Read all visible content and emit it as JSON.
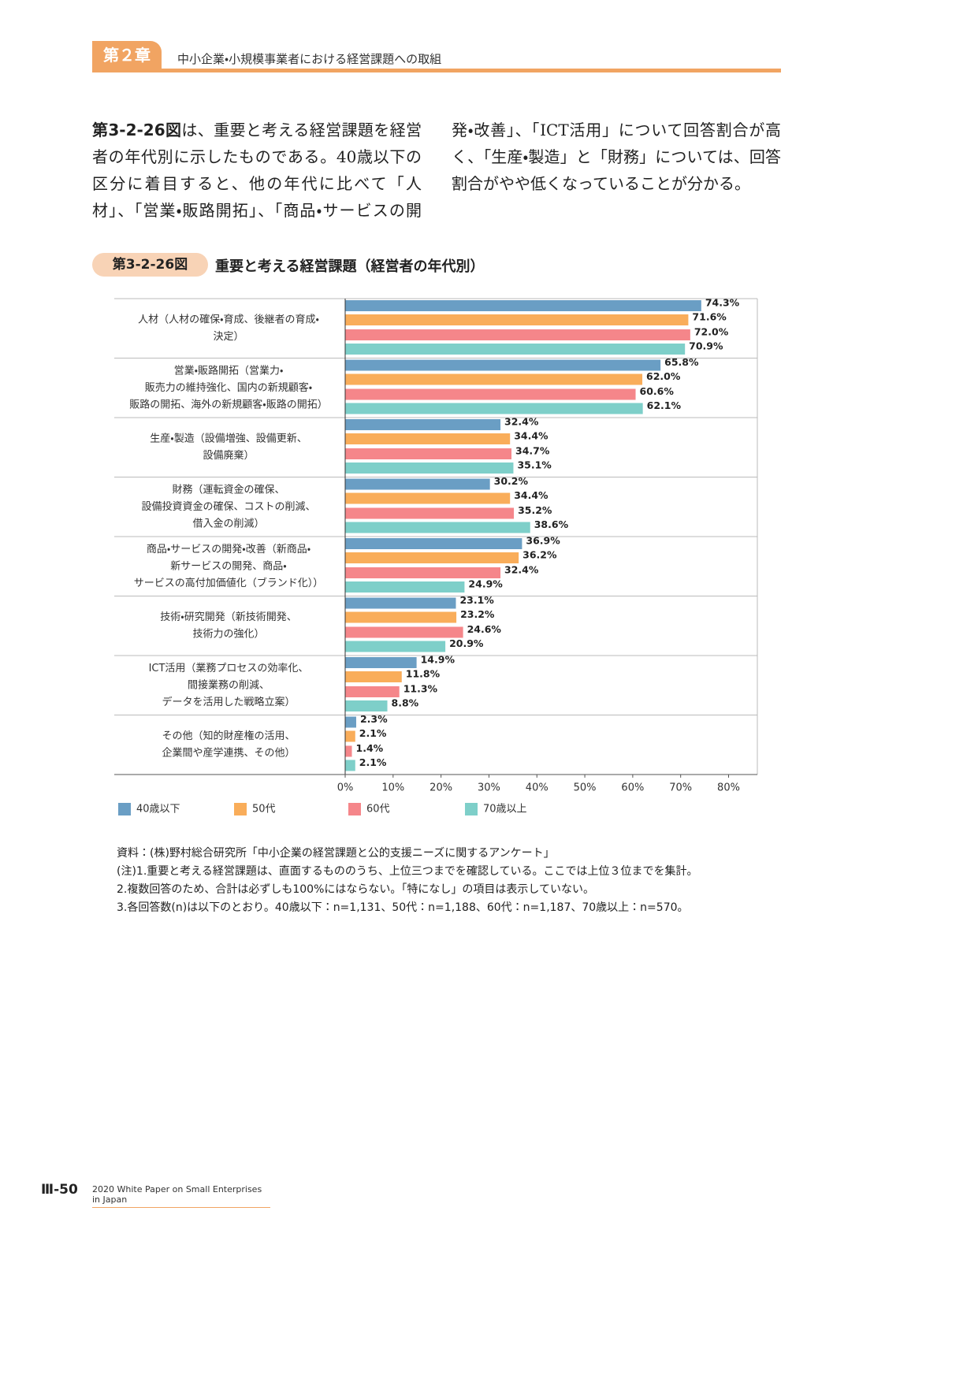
{
  "header": {
    "chapter": "第２章",
    "title": "中小企業・小規模事業者における経営課題への取組"
  },
  "body": {
    "lead": "第3-2-26図",
    "text": "は、重要と考える経営課題を経営者の年代別に示したものである。40歳以下の区分に着目すると、他の年代に比べて「人材」、「営業・販路開拓」、「商品・サービスの開発・改善」、「ICT活用」について回答割合が高く、「生産・製造」と「財務」については、回答割合がやや低くなっていることが分かる。"
  },
  "figure": {
    "number": "第3-2-26図",
    "title": "重要と考える経営課題（経営者の年代別）"
  },
  "chart_data": {
    "type": "bar",
    "orientation": "horizontal",
    "categories": [
      [
        "人材（人材の確保・育成、後継者の育成・",
        "決定）"
      ],
      [
        "営業・販路開拓（営業力・",
        "販売力の維持強化、国内の新規顧客・",
        "販路の開拓、海外の新規顧客・販路の開拓）"
      ],
      [
        "生産・製造（設備増強、設備更新、",
        "設備廃棄）"
      ],
      [
        "財務（運転資金の確保、",
        "設備投資資金の確保、コストの削減、",
        "借入金の削減）"
      ],
      [
        "商品・サービスの開発・改善（新商品・",
        "新サービスの開発、商品・",
        "サービスの高付加価値化（ブランド化））"
      ],
      [
        "技術・研究開発（新技術開発、",
        "技術力の強化）"
      ],
      [
        "ICT活用（業務プロセスの効率化、",
        "間接業務の削減、",
        "データを活用した戦略立案）"
      ],
      [
        "その他（知的財産権の活用、",
        "企業間や産学連携、その他）"
      ]
    ],
    "series": [
      {
        "name": "40歳以下",
        "color": "#6a9ec4",
        "values": [
          74.3,
          65.8,
          32.4,
          30.2,
          36.9,
          23.1,
          14.9,
          2.3
        ],
        "value_labels": [
          "74.3%",
          "65.8%",
          "32.4%",
          "30.2%",
          "36.9%",
          "23.1%",
          "14.9%",
          "2.3%"
        ]
      },
      {
        "name": "50代",
        "color": "#f9ad5a",
        "values": [
          71.6,
          62.0,
          34.4,
          34.4,
          36.2,
          23.2,
          11.8,
          2.1
        ],
        "value_labels": [
          "71.6%",
          "62.0%",
          "34.4%",
          "34.4%",
          "36.2%",
          "23.2%",
          "11.8%",
          "2.1%"
        ]
      },
      {
        "name": "60代",
        "color": "#f5868a",
        "values": [
          72.0,
          60.6,
          34.7,
          35.2,
          32.4,
          24.6,
          11.3,
          1.4
        ],
        "value_labels": [
          "72.0%",
          "60.6%",
          "34.7%",
          "35.2%",
          "32.4%",
          "24.6%",
          "11.3%",
          "1.4%"
        ]
      },
      {
        "name": "70歳以上",
        "color": "#7ecfc9",
        "values": [
          70.9,
          62.1,
          35.1,
          38.6,
          24.9,
          20.9,
          8.8,
          2.1
        ],
        "value_labels": [
          "70.9%",
          "62.1%",
          "35.1%",
          "38.6%",
          "24.9%",
          "20.9%",
          "8.8%",
          "2.1%"
        ]
      }
    ],
    "xlim": [
      0,
      86
    ],
    "xticks": [
      {
        "value": 0,
        "label": "0%"
      },
      {
        "value": 10,
        "label": "10%"
      },
      {
        "value": 20,
        "label": "20%"
      },
      {
        "value": 30,
        "label": "30%"
      },
      {
        "value": 40,
        "label": "40%"
      },
      {
        "value": 50,
        "label": "50%"
      },
      {
        "value": 60,
        "label": "60%"
      },
      {
        "value": 70,
        "label": "70%"
      },
      {
        "value": 80,
        "label": "80%"
      }
    ],
    "grid": false
  },
  "notes": [
    "資料：(株)野村総合研究所「中小企業の経営課題と公的支援ニーズに関するアンケート」",
    "(注)1.重要と考える経営課題は、直面するもののうち、上位三つまでを確認している。ここでは上位３位までを集計。",
    "2.複数回答のため、合計は必ずしも100%にはならない。「特になし」の項目は表示していない。",
    "3.各回答数(n)は以下のとおり。40歳以下：n=1,131、50代：n=1,188、60代：n=1,187、70歳以上：n=570。"
  ],
  "footer": {
    "page": "Ⅲ-50",
    "publication": "2020 White Paper on Small Enterprises in Japan"
  }
}
